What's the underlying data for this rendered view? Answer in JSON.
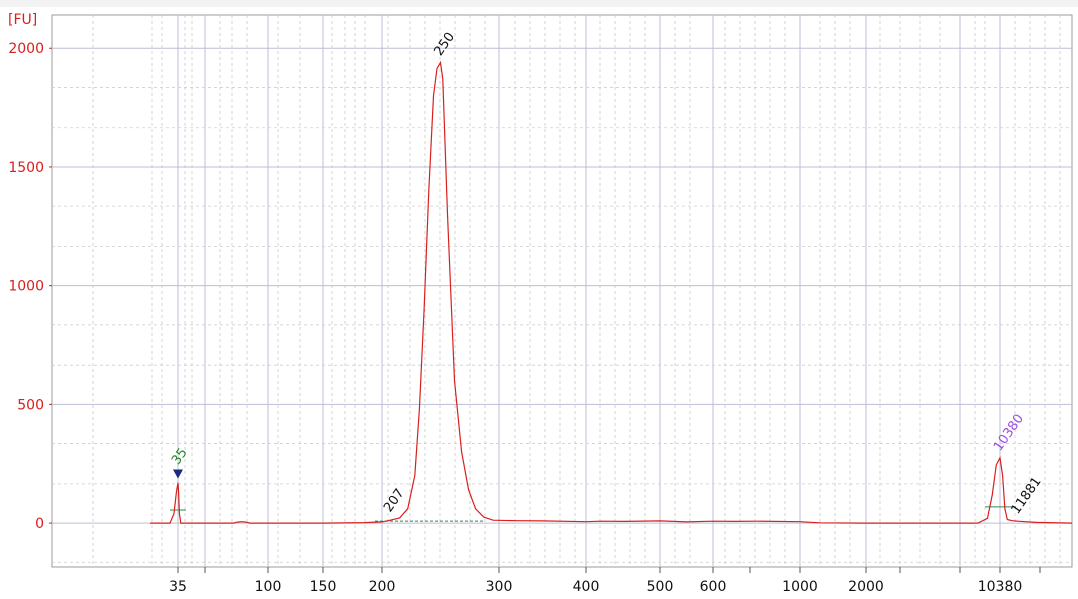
{
  "chart_data": {
    "type": "line",
    "title": "",
    "ylabel": "[FU]",
    "xlabel": "",
    "ylim": [
      -185,
      2140
    ],
    "y_ticks": [
      "0",
      "500",
      "1000",
      "1500",
      "2000"
    ],
    "x_ticks": [
      "35",
      "100",
      "150",
      "200",
      "300",
      "400",
      "500",
      "600",
      "1000",
      "2000",
      "10380"
    ],
    "grid": true,
    "peaks": [
      {
        "label": "35",
        "x_bp": 35,
        "y": 175,
        "color": "#1f8a1f",
        "marker": true
      },
      {
        "label": "207",
        "x_bp": 207,
        "y": 18,
        "color": "#111111"
      },
      {
        "label": "250",
        "x_bp": 250,
        "y": 1940,
        "color": "#111111"
      },
      {
        "label": "10380",
        "x_bp": 10380,
        "y": 275,
        "color": "#9a4de0"
      },
      {
        "label": "11881",
        "x_bp": 11881,
        "y": 10,
        "color": "#111111"
      }
    ],
    "series": [
      {
        "name": "",
        "color": "#d8201e",
        "points": [
          [
            28,
            0
          ],
          [
            33,
            0
          ],
          [
            34,
            40
          ],
          [
            34.6,
            130
          ],
          [
            35,
            170
          ],
          [
            35.4,
            130
          ],
          [
            36,
            40
          ],
          [
            37,
            0
          ],
          [
            75,
            0
          ],
          [
            78,
            4
          ],
          [
            81,
            6
          ],
          [
            84,
            4
          ],
          [
            87,
            0
          ],
          [
            150,
            0
          ],
          [
            185,
            2
          ],
          [
            200,
            5
          ],
          [
            207,
            12
          ],
          [
            215,
            22
          ],
          [
            222,
            60
          ],
          [
            228,
            200
          ],
          [
            232,
            480
          ],
          [
            236,
            900
          ],
          [
            240,
            1400
          ],
          [
            244,
            1800
          ],
          [
            247,
            1915
          ],
          [
            250,
            1940
          ],
          [
            252,
            1870
          ],
          [
            256,
            1300
          ],
          [
            262,
            600
          ],
          [
            268,
            300
          ],
          [
            274,
            140
          ],
          [
            280,
            60
          ],
          [
            287,
            25
          ],
          [
            295,
            12
          ],
          [
            320,
            10
          ],
          [
            350,
            9
          ],
          [
            400,
            6
          ],
          [
            420,
            8
          ],
          [
            450,
            7
          ],
          [
            500,
            9
          ],
          [
            550,
            5
          ],
          [
            600,
            8
          ],
          [
            700,
            7
          ],
          [
            800,
            8
          ],
          [
            1000,
            6
          ],
          [
            1300,
            1
          ],
          [
            2000,
            0
          ],
          [
            5000,
            0
          ],
          [
            9000,
            0
          ],
          [
            9600,
            20
          ],
          [
            9900,
            120
          ],
          [
            10150,
            245
          ],
          [
            10380,
            275
          ],
          [
            10600,
            200
          ],
          [
            10800,
            60
          ],
          [
            11000,
            15
          ],
          [
            11400,
            10
          ],
          [
            11881,
            8
          ],
          [
            12500,
            6
          ],
          [
            13500,
            3
          ],
          [
            14500,
            2
          ],
          [
            16500,
            0
          ]
        ]
      }
    ]
  }
}
